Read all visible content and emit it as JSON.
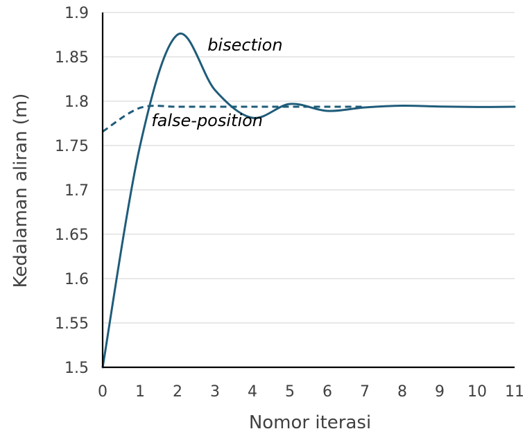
{
  "chart_data": {
    "type": "line",
    "xlabel": "Nomor iterasi",
    "ylabel": "Kedalaman aliran (m)",
    "xlim": [
      0,
      11
    ],
    "ylim": [
      1.5,
      1.9
    ],
    "x_ticks": [
      "0",
      "1",
      "2",
      "3",
      "4",
      "5",
      "6",
      "7",
      "8",
      "9",
      "10",
      "11"
    ],
    "y_ticks": [
      "1.5",
      "1.55",
      "1.6",
      "1.65",
      "1.7",
      "1.75",
      "1.8",
      "1.85",
      "1.9"
    ],
    "grid": "horizontal",
    "legend": "none",
    "series": [
      {
        "name": "bisection",
        "style": "solid",
        "color": "#1f5c7a",
        "x": [
          0,
          1,
          2,
          3,
          4,
          5,
          6,
          7,
          8,
          9,
          10,
          11
        ],
        "y": [
          1.5,
          1.75,
          1.875,
          1.8125,
          1.78125,
          1.796875,
          1.789063,
          1.792969,
          1.794922,
          1.793945,
          1.793457,
          1.793701
        ]
      },
      {
        "name": "false-position",
        "style": "dashed",
        "color": "#1f5c7a",
        "x": [
          0,
          1,
          2,
          3,
          4,
          5,
          6,
          7
        ],
        "y": [
          1.7657,
          1.7925,
          1.7937,
          1.7937,
          1.7937,
          1.7937,
          1.7937,
          1.7937
        ]
      }
    ],
    "annotations": [
      {
        "text": "bisection",
        "x": 2.8,
        "y": 1.857
      },
      {
        "text": "false-position",
        "x": 1.3,
        "y": 1.772
      }
    ]
  }
}
